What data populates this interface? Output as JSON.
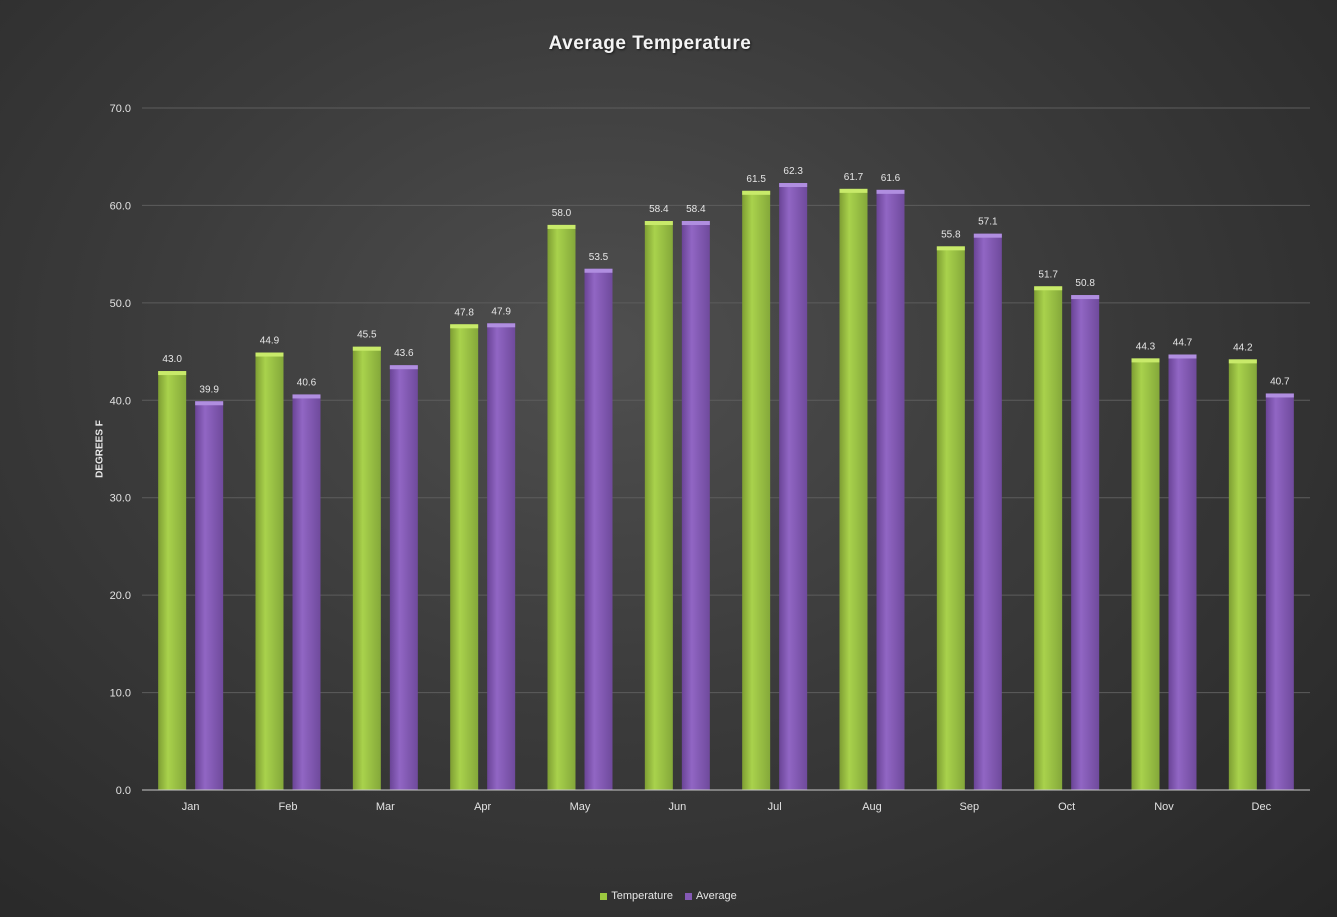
{
  "chart_data": {
    "type": "bar",
    "title": "Average Temperature",
    "xlabel": "",
    "ylabel": "DEGREES F",
    "ylim": [
      0,
      70
    ],
    "yticks": [
      "0.0",
      "10.0",
      "20.0",
      "30.0",
      "40.0",
      "50.0",
      "60.0",
      "70.0"
    ],
    "ytick_values": [
      0,
      10,
      20,
      30,
      40,
      50,
      60,
      70
    ],
    "categories": [
      "Jan",
      "Feb",
      "Mar",
      "Apr",
      "May",
      "Jun",
      "Jul",
      "Aug",
      "Sep",
      "Oct",
      "Nov",
      "Dec"
    ],
    "series": [
      {
        "name": "Temperature",
        "color": "#9bc83f",
        "values": [
          43.0,
          44.9,
          45.5,
          47.8,
          58.0,
          58.4,
          61.5,
          61.7,
          55.8,
          51.7,
          44.3,
          44.2
        ],
        "labels": [
          "43.0",
          "44.9",
          "45.5",
          "47.8",
          "58.0",
          "58.4",
          "61.5",
          "61.7",
          "55.8",
          "51.7",
          "44.3",
          "44.2"
        ]
      },
      {
        "name": "Average",
        "color": "#8459b5",
        "values": [
          39.9,
          40.6,
          43.6,
          47.9,
          53.5,
          58.4,
          62.3,
          61.6,
          57.1,
          50.8,
          44.7,
          40.7
        ],
        "labels": [
          "39.9",
          "40.6",
          "43.6",
          "47.9",
          "53.5",
          "58.4",
          "62.3",
          "61.6",
          "57.1",
          "50.8",
          "44.7",
          "40.7"
        ]
      }
    ],
    "grid": true,
    "legend_position": "bottom"
  }
}
